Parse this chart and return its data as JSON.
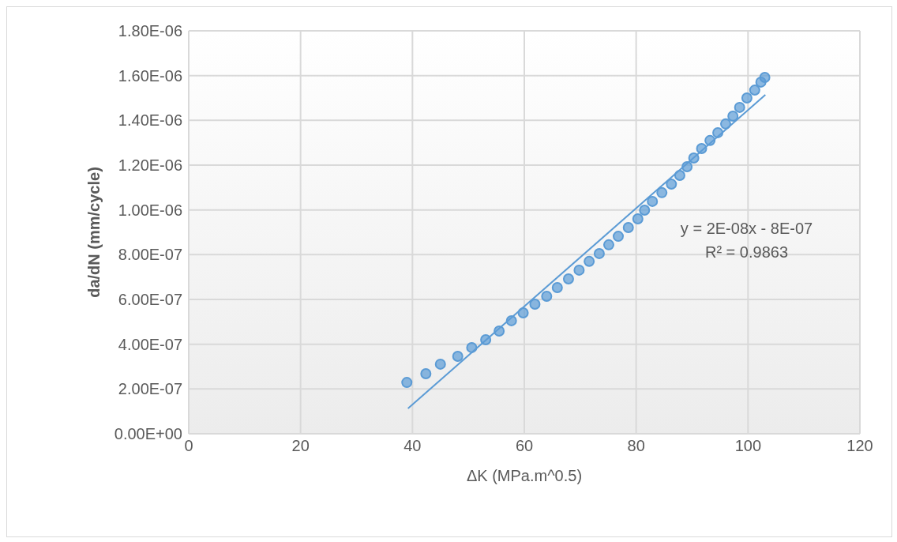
{
  "chart_data": {
    "type": "scatter",
    "xlabel": "ΔK (MPa.m^0.5)",
    "ylabel": "da/dN (mm/cycle)",
    "series": [
      {
        "type": "scatter",
        "color": "#5b9bd5",
        "marker": "circle",
        "x": [
          39.0,
          42.4,
          45.0,
          48.1,
          50.6,
          53.1,
          55.5,
          57.7,
          59.8,
          61.9,
          64.0,
          65.9,
          67.9,
          69.8,
          71.6,
          73.4,
          75.1,
          76.8,
          78.6,
          80.3,
          81.5,
          82.9,
          84.6,
          86.3,
          87.8,
          89.1,
          90.3,
          91.7,
          93.2,
          94.6,
          96.0,
          97.3,
          98.5,
          99.8,
          101.2,
          102.3,
          103.0
        ],
        "values": [
          2.29e-07,
          2.68e-07,
          3.11e-07,
          3.46e-07,
          3.85e-07,
          4.2e-07,
          4.59e-07,
          5.05e-07,
          5.4e-07,
          5.79e-07,
          6.14e-07,
          6.53e-07,
          6.92e-07,
          7.31e-07,
          7.7e-07,
          8.05e-07,
          8.44e-07,
          8.82e-07,
          9.21e-07,
          9.6e-07,
          9.99e-07,
          1.038e-06,
          1.077e-06,
          1.115e-06,
          1.154e-06,
          1.193e-06,
          1.232e-06,
          1.274e-06,
          1.31e-06,
          1.345e-06,
          1.384e-06,
          1.419e-06,
          1.458e-06,
          1.5e-06,
          1.535e-06,
          1.571e-06,
          1.592e-06
        ]
      },
      {
        "type": "line",
        "color": "#5b9bd5",
        "marker": "none",
        "line_style": "solid",
        "x": [
          39.2,
          103.1
        ],
        "values": [
          1.13e-07,
          1.514e-06
        ]
      }
    ],
    "annotations": [
      "y = 2E-08x - 8E-07",
      "R² = 0.9863"
    ],
    "xlim": [
      0,
      120
    ],
    "xticks": [
      0,
      20,
      40,
      60,
      80,
      100,
      120
    ],
    "ylim": [
      0,
      1.8e-06
    ],
    "yticks": [
      {
        "value": 0,
        "label": "0.00E+00"
      },
      {
        "value": 2e-07,
        "label": "2.00E-07"
      },
      {
        "value": 4e-07,
        "label": "4.00E-07"
      },
      {
        "value": 6e-07,
        "label": "6.00E-07"
      },
      {
        "value": 8e-07,
        "label": "8.00E-07"
      },
      {
        "value": 1e-06,
        "label": "1.00E-06"
      },
      {
        "value": 1.2e-06,
        "label": "1.20E-06"
      },
      {
        "value": 1.4e-06,
        "label": "1.40E-06"
      },
      {
        "value": 1.6e-06,
        "label": "1.60E-06"
      },
      {
        "value": 1.8e-06,
        "label": "1.80E-06"
      }
    ],
    "grid": true,
    "legend": false
  }
}
